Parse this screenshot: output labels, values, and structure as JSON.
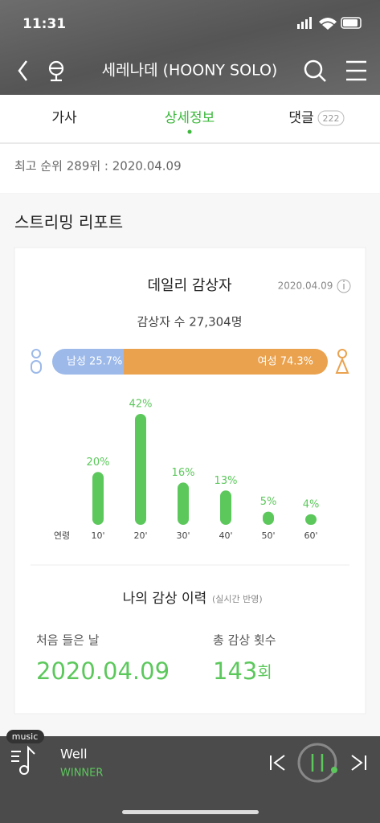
{
  "status_bar": {
    "time": "11:31"
  },
  "header": {
    "title": "세레나데 (HOONY SOLO)"
  },
  "tabs": [
    {
      "label": "가사"
    },
    {
      "label": "상세정보"
    },
    {
      "label": "댓글",
      "count": 222
    }
  ],
  "peak_rank": "최고 순위 289위 : 2020.04.09",
  "section_title": "스트리밍 리포트",
  "daily_listeners": {
    "title": "데일리 감상자",
    "date": "2020.04.09",
    "total": "감상자 수 27,304명",
    "gender": [
      {
        "label": "남성 25.7%",
        "value": 25.7,
        "color": "#9cb9e9"
      },
      {
        "label": "여성 74.3%",
        "value": 74.3,
        "color": "#eaa24e"
      }
    ],
    "age_chart": {
      "type": "bar",
      "axis_label": "연령",
      "categories": [
        "10'",
        "20'",
        "30'",
        "40'",
        "50'",
        "60'"
      ],
      "values": [
        20,
        42,
        16,
        13,
        5,
        4
      ],
      "value_labels": [
        "20%",
        "42%",
        "16%",
        "13%",
        "5%",
        "4%"
      ],
      "color": "#5cc85c"
    }
  },
  "my_history": {
    "title": "나의 감상 이력",
    "note": "(실시간 반영)",
    "first_listen_label": "처음 들은 날",
    "first_listen_date": "2020.04.09",
    "total_plays_label": "총 감상 횟수",
    "total_plays": 143,
    "total_plays_unit": "회"
  },
  "player": {
    "badge": "music",
    "track": "Well",
    "artist": "WINNER"
  }
}
